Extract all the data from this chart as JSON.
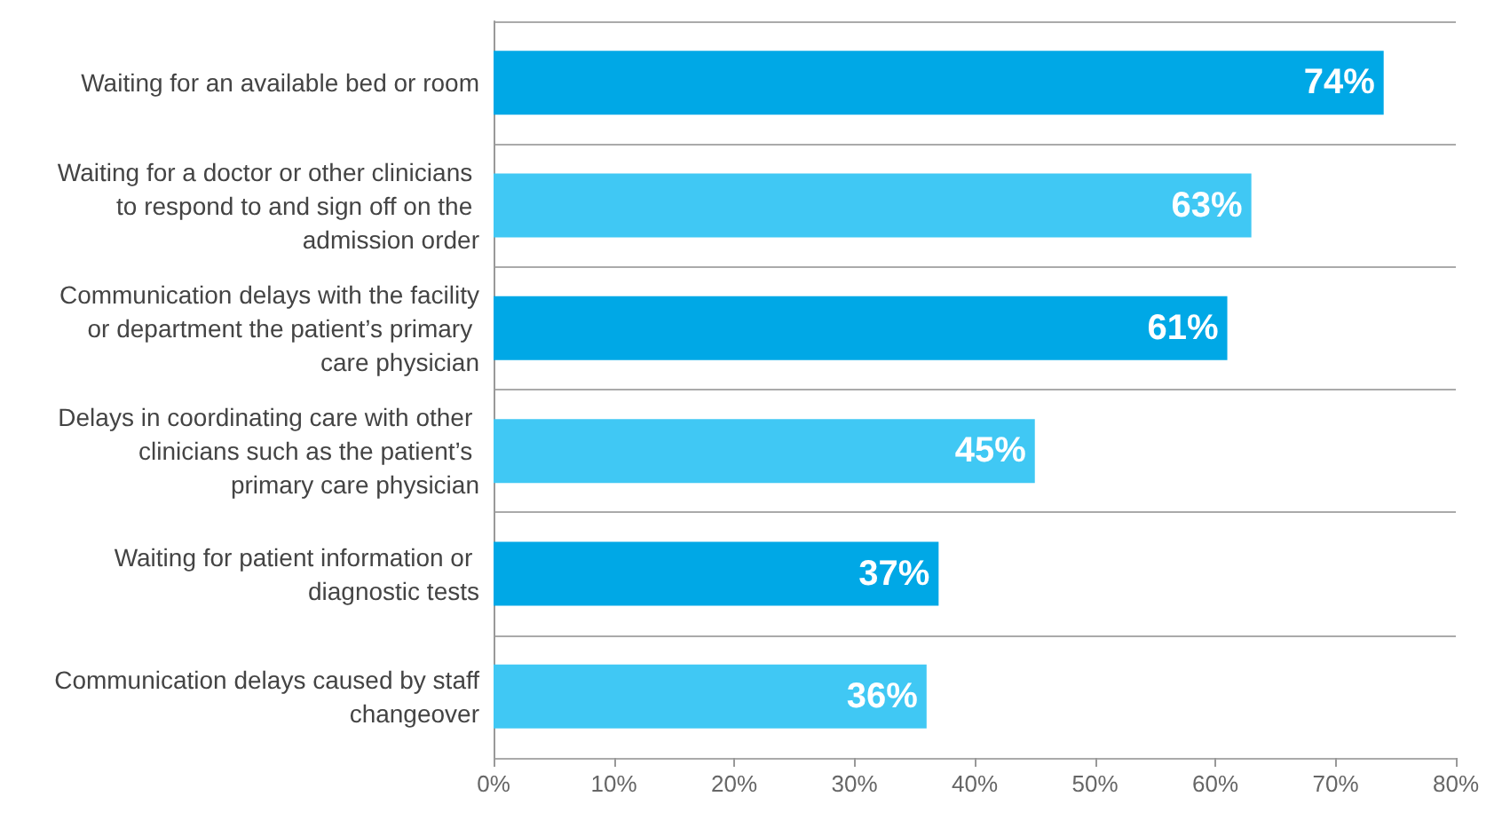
{
  "chart_data": {
    "type": "bar",
    "orientation": "horizontal",
    "categories": [
      "Waiting for an available bed or room",
      "Waiting for a doctor or other clinicians to respond to and sign off on the admission order",
      "Communication delays with the facility or department the patient’s primary care physician",
      "Delays in coordinating care with other clinicians such as the patient’s primary care physician",
      "Waiting for patient information or diagnostic tests",
      "Communication delays caused by staff changeover"
    ],
    "values": [
      74,
      63,
      61,
      45,
      37,
      36
    ],
    "colors": [
      "#00a8e6",
      "#40c8f4",
      "#00a8e6",
      "#40c8f4",
      "#00a8e6",
      "#40c8f4"
    ],
    "value_labels": [
      "74%",
      "63%",
      "61%",
      "45%",
      "37%",
      "36%"
    ],
    "xlim": [
      0,
      80
    ],
    "xticks": [
      {
        "value": 0,
        "label": "0%"
      },
      {
        "value": 10,
        "label": "10%"
      },
      {
        "value": 20,
        "label": "20%"
      },
      {
        "value": 30,
        "label": "30%"
      },
      {
        "value": 40,
        "label": "40%"
      },
      {
        "value": 50,
        "label": "50%"
      },
      {
        "value": 60,
        "label": "60%"
      },
      {
        "value": 70,
        "label": "70%"
      },
      {
        "value": 80,
        "label": "80%"
      }
    ],
    "grid": "y"
  }
}
